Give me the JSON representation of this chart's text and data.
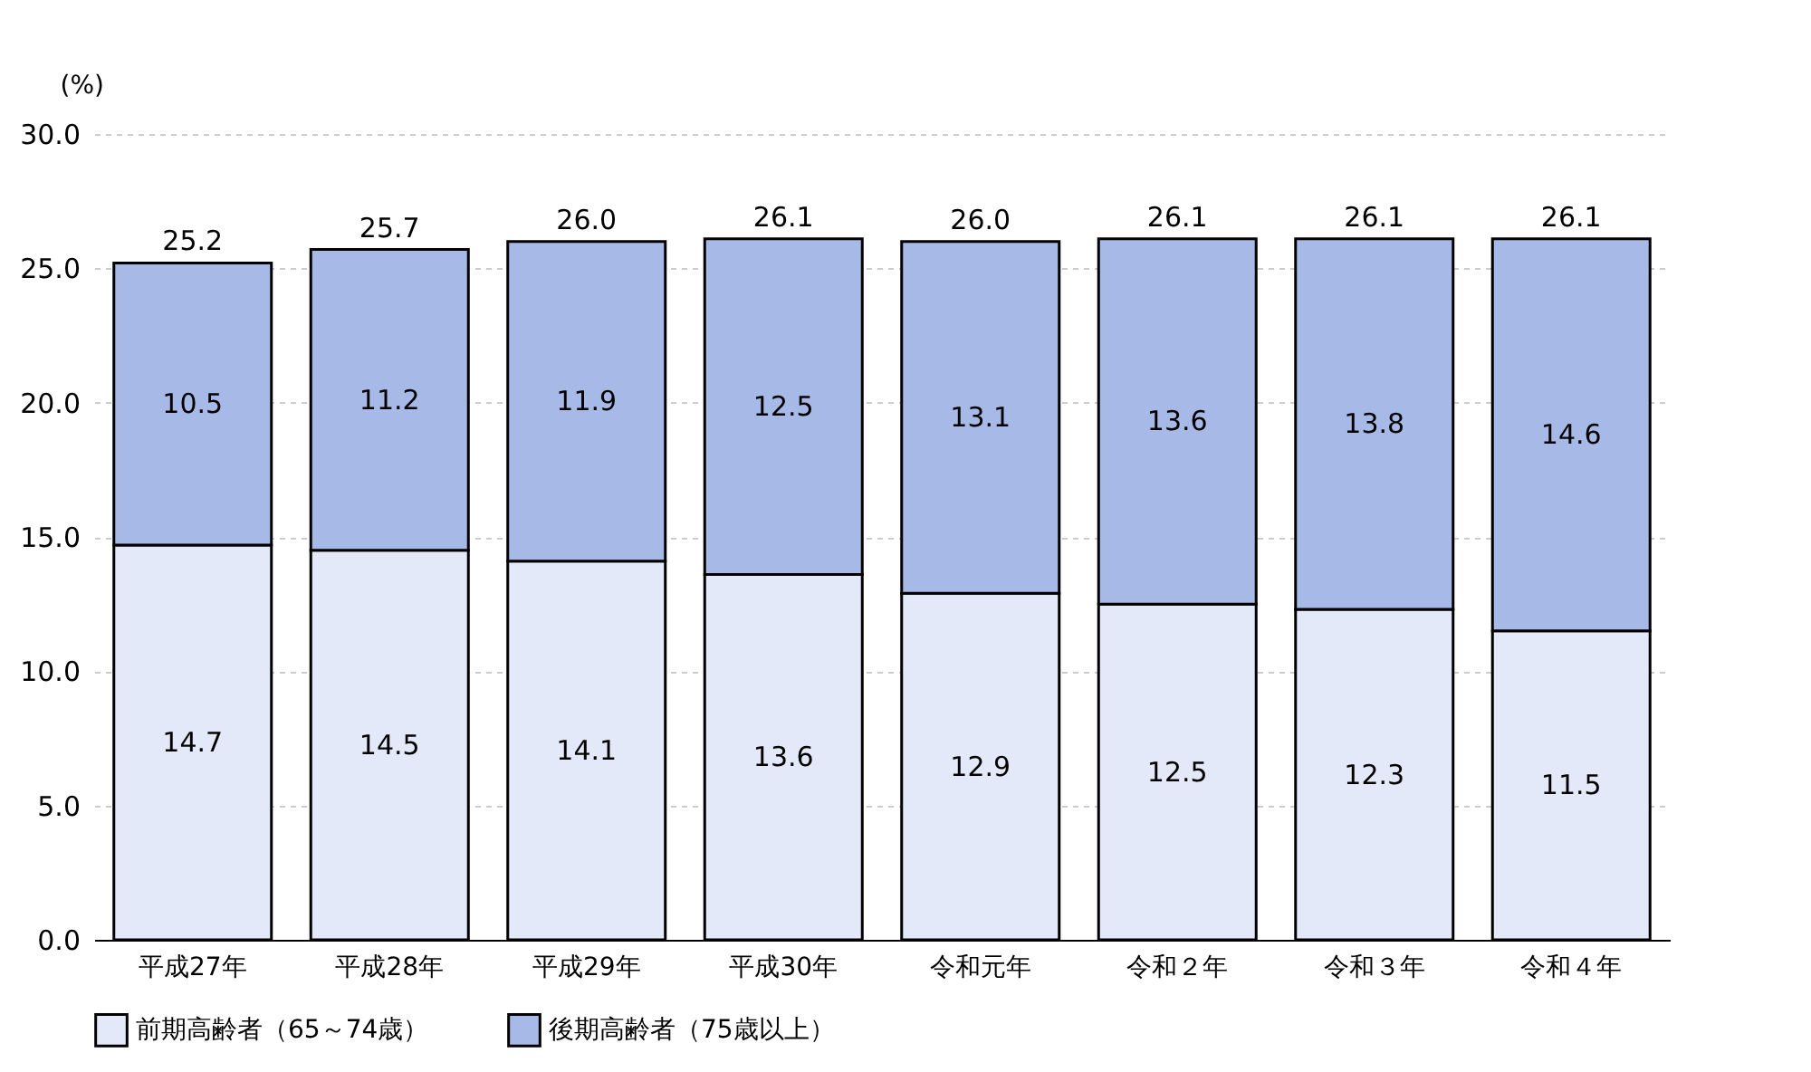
{
  "chart_data": {
    "type": "bar",
    "stacked": true,
    "ylabel": "(%)",
    "categories": [
      "平成27年",
      "平成28年",
      "平成29年",
      "平成30年",
      "令和元年",
      "令和２年",
      "令和３年",
      "令和４年"
    ],
    "series": [
      {
        "name": "前期高齢者（65～74歳）",
        "color": "#e3e9f8",
        "values": [
          14.7,
          14.5,
          14.1,
          13.6,
          12.9,
          12.5,
          12.3,
          11.5
        ]
      },
      {
        "name": "後期高齢者（75歳以上）",
        "color": "#a7b9e6",
        "values": [
          10.5,
          11.2,
          11.9,
          12.5,
          13.1,
          13.6,
          13.8,
          14.6
        ]
      }
    ],
    "totals": [
      "25.2",
      "25.7",
      "26.0",
      "26.1",
      "26.0",
      "26.1",
      "26.1",
      "26.1"
    ],
    "data_labels": true,
    "ylim": [
      0,
      30
    ],
    "yticks": [
      {
        "value": 0,
        "label": "0.0"
      },
      {
        "value": 5,
        "label": "5.0"
      },
      {
        "value": 10,
        "label": "10.0"
      },
      {
        "value": 15,
        "label": "15.0"
      },
      {
        "value": 20,
        "label": "20.0"
      },
      {
        "value": 25,
        "label": "25.0"
      },
      {
        "value": 30,
        "label": "30.0"
      }
    ],
    "grid": "y",
    "legend": "bottom"
  }
}
